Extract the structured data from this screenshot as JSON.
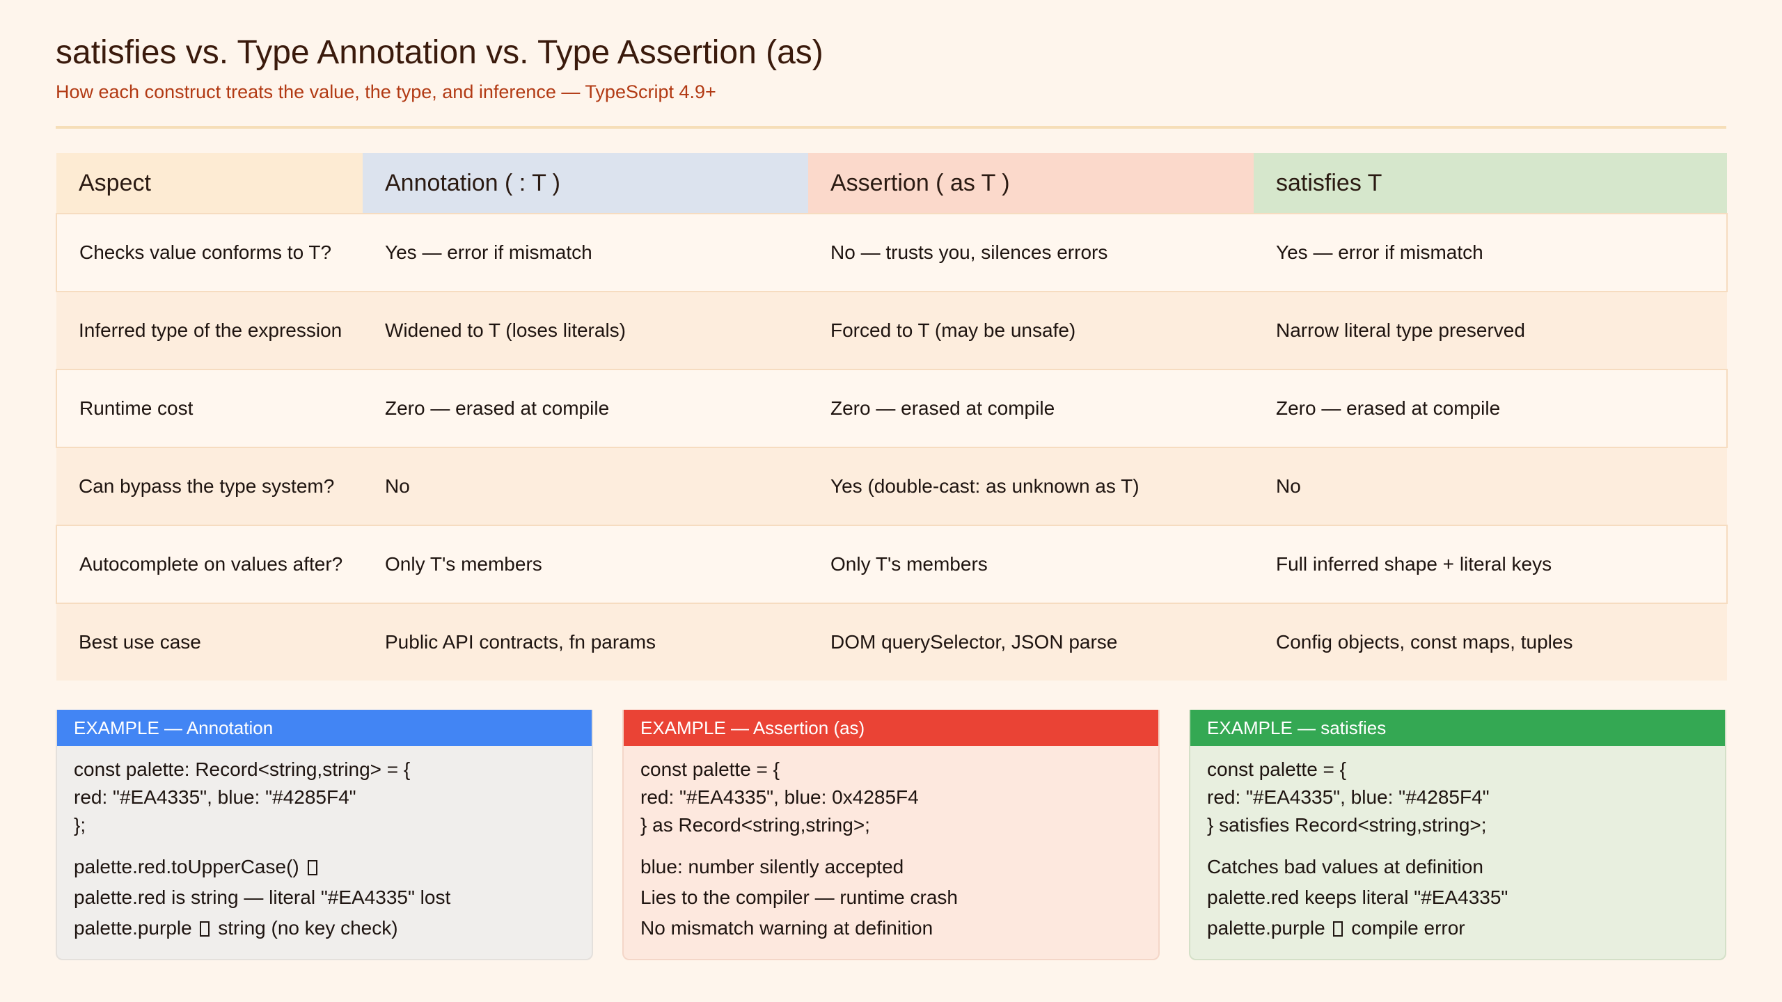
{
  "header": {
    "title": "satisfies vs. Type Annotation vs. Type Assertion (as)",
    "subtitle": "How each construct treats the value, the type, and inference — TypeScript 4.9+"
  },
  "table": {
    "columns": [
      "Aspect",
      "Annotation ( : T )",
      "Assertion ( as T )",
      "satisfies T"
    ],
    "column_colors": [
      "#FDEBD3",
      "#DCE3EE",
      "#FBD9CB",
      "#D6E7CC"
    ],
    "rows": [
      [
        "Checks value conforms to T?",
        "Yes — error if mismatch",
        "No — trusts you, silences errors",
        "Yes — error if mismatch"
      ],
      [
        "Inferred type of the expression",
        "Widened to T (loses literals)",
        "Forced to T (may be unsafe)",
        "Narrow literal type preserved"
      ],
      [
        "Runtime cost",
        "Zero — erased at compile",
        "Zero — erased at compile",
        "Zero — erased at compile"
      ],
      [
        "Can bypass the type system?",
        "No",
        "Yes (double-cast: as unknown as T)",
        "No"
      ],
      [
        "Autocomplete on values after?",
        "Only T's members",
        "Only T's members",
        "Full inferred shape + literal keys"
      ],
      [
        "Best use case",
        "Public API contracts, fn params",
        "DOM querySelector, JSON parse",
        "Config objects, const maps, tuples"
      ]
    ]
  },
  "examples": [
    {
      "header": "EXAMPLE — Annotation",
      "accent": "#4285F4",
      "code": [
        "const palette: Record<string,string> = {",
        "red: \"#EA4335\", blue: \"#4285F4\"",
        "};"
      ],
      "notes": [
        "palette.red.toUpperCase() ",
        "palette.red is string — literal \"#EA4335\" lost",
        "palette.purple ",
        " string (no key check)"
      ]
    },
    {
      "header": "EXAMPLE — Assertion (as)",
      "accent": "#EA4335",
      "code": [
        "const palette = {",
        "red: \"#EA4335\", blue: 0x4285F4",
        "} as Record<string,string>;"
      ],
      "notes": [
        "blue: number silently accepted",
        "Lies to the compiler — runtime crash",
        "No mismatch warning at definition"
      ]
    },
    {
      "header": "EXAMPLE — satisfies",
      "accent": "#34A853",
      "code": [
        "const palette = {",
        "red: \"#EA4335\", blue: \"#4285F4\"",
        "} satisfies Record<string,string>;"
      ],
      "notes": [
        "Catches bad values at definition",
        "palette.red keeps literal \"#EA4335\"",
        "palette.purple ",
        " compile error"
      ]
    }
  ]
}
